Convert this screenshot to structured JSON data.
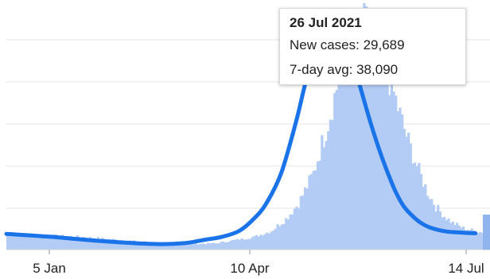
{
  "chart_data": {
    "type": "bar",
    "grid": true,
    "colors": {
      "bars": "#b3ccf5",
      "line": "#1a73e8",
      "grid": "#e6e6e6"
    },
    "x_ticks": [
      "5 Jan",
      "10 Apr",
      "14 Jul"
    ],
    "series": [
      {
        "type": "line",
        "points": [
          [
            "2020-12-01",
            2700
          ],
          [
            "2021-01-05",
            2200
          ],
          [
            "2021-02-01",
            1400
          ],
          [
            "2021-02-25",
            950
          ],
          [
            "2021-03-10",
            1100
          ],
          [
            "2021-03-20",
            1700
          ],
          [
            "2021-03-28",
            2200
          ],
          [
            "2021-04-05",
            3200
          ],
          [
            "2021-04-12",
            5300
          ],
          [
            "2021-04-18",
            8000
          ],
          [
            "2021-04-25",
            13200
          ],
          [
            "2021-05-02",
            22000
          ],
          [
            "2021-05-06",
            28000
          ],
          [
            "2021-05-10",
            33500
          ],
          [
            "2021-05-14",
            37000
          ],
          [
            "2021-05-18",
            38500
          ],
          [
            "2021-05-21",
            38800
          ],
          [
            "2021-05-25",
            37000
          ],
          [
            "2021-05-29",
            32000
          ],
          [
            "2021-06-02",
            27000
          ],
          [
            "2021-06-06",
            22000
          ],
          [
            "2021-06-10",
            17500
          ],
          [
            "2021-06-14",
            13500
          ],
          [
            "2021-06-18",
            10000
          ],
          [
            "2021-06-22",
            7400
          ],
          [
            "2021-06-26",
            5800
          ],
          [
            "2021-06-30",
            4600
          ],
          [
            "2021-07-05",
            3700
          ],
          [
            "2021-07-12",
            3100
          ],
          [
            "2021-07-20",
            2900
          ],
          [
            "2021-07-26",
            2800
          ]
        ]
      }
    ],
    "tooltip": {
      "date": "26 Jul 2021",
      "new_cases_text": "New cases: 29,689",
      "avg_text": "7-day avg: 38,090"
    }
  }
}
